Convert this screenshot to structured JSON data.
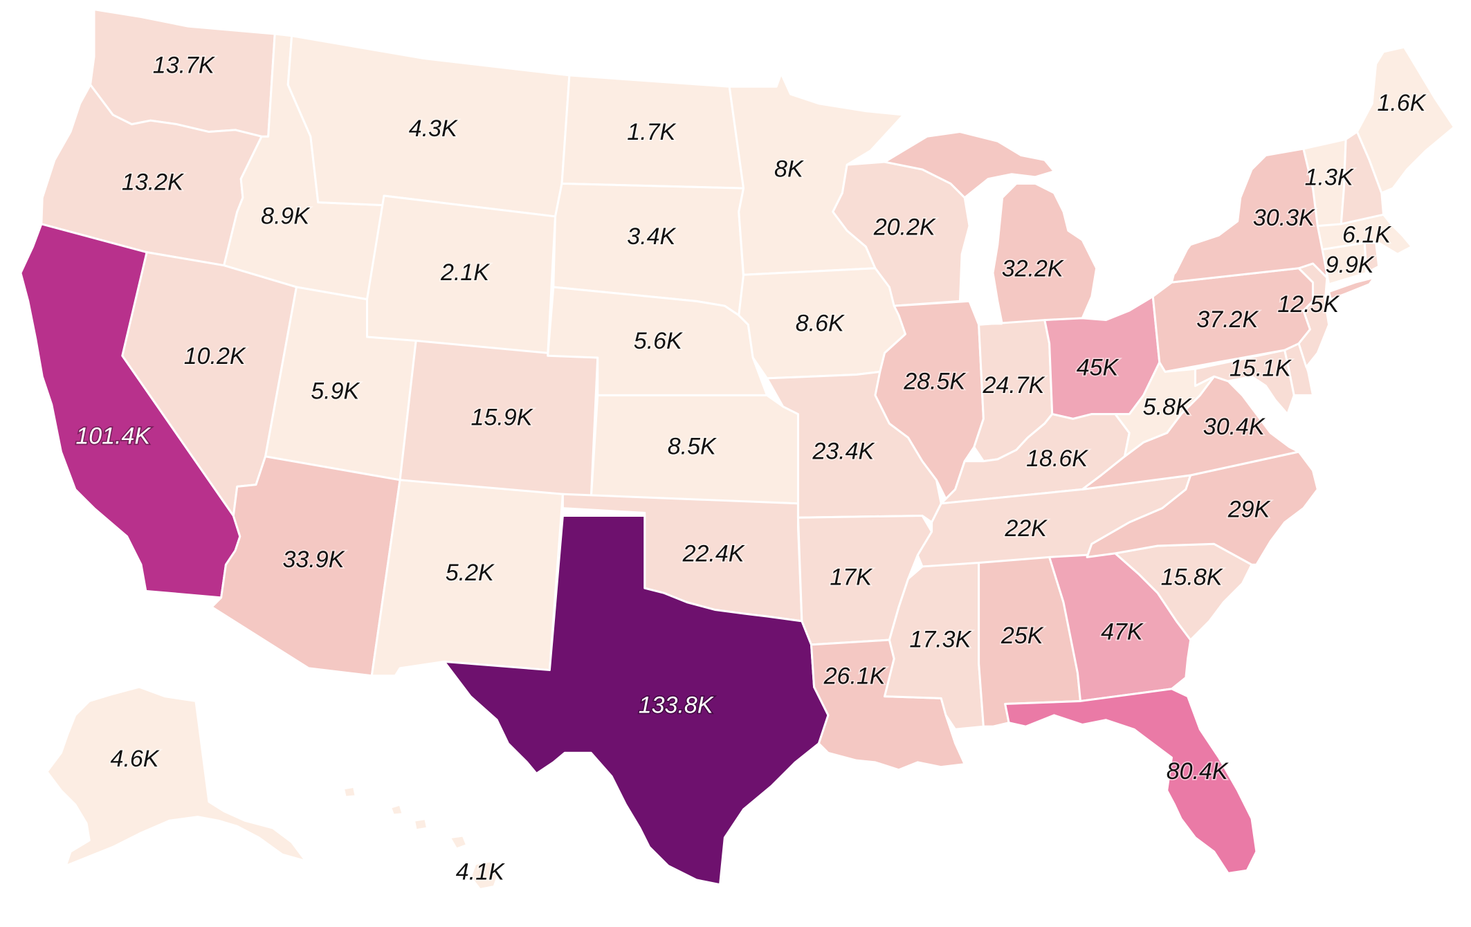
{
  "map": {
    "palette": {
      "t1": "#fcede3",
      "t2": "#f8ddd5",
      "t3": "#f4c8c3",
      "t4": "#f0a6b7",
      "t5": "#ea7aa6",
      "t6": "#b8318c",
      "t7": "#6e116e"
    },
    "states": [
      {
        "id": "WA",
        "label": "13.7K",
        "value": 13700
      },
      {
        "id": "OR",
        "label": "13.2K",
        "value": 13200
      },
      {
        "id": "CA",
        "label": "101.4K",
        "value": 101400
      },
      {
        "id": "ID",
        "label": "8.9K",
        "value": 8900
      },
      {
        "id": "NV",
        "label": "10.2K",
        "value": 10200
      },
      {
        "id": "MT",
        "label": "4.3K",
        "value": 4300
      },
      {
        "id": "WY",
        "label": "2.1K",
        "value": 2100
      },
      {
        "id": "UT",
        "label": "5.9K",
        "value": 5900
      },
      {
        "id": "AZ",
        "label": "33.9K",
        "value": 33900
      },
      {
        "id": "CO",
        "label": "15.9K",
        "value": 15900
      },
      {
        "id": "NM",
        "label": "5.2K",
        "value": 5200
      },
      {
        "id": "ND",
        "label": "1.7K",
        "value": 1700
      },
      {
        "id": "SD",
        "label": "3.4K",
        "value": 3400
      },
      {
        "id": "NE",
        "label": "5.6K",
        "value": 5600
      },
      {
        "id": "KS",
        "label": "8.5K",
        "value": 8500
      },
      {
        "id": "OK",
        "label": "22.4K",
        "value": 22400
      },
      {
        "id": "TX",
        "label": "133.8K",
        "value": 133800
      },
      {
        "id": "MN",
        "label": "8K",
        "value": 8000
      },
      {
        "id": "IA",
        "label": "8.6K",
        "value": 8600
      },
      {
        "id": "MO",
        "label": "23.4K",
        "value": 23400
      },
      {
        "id": "AR",
        "label": "17K",
        "value": 17000
      },
      {
        "id": "LA",
        "label": "26.1K",
        "value": 26100
      },
      {
        "id": "WI",
        "label": "20.2K",
        "value": 20200
      },
      {
        "id": "IL",
        "label": "28.5K",
        "value": 28500
      },
      {
        "id": "MI",
        "label": "32.2K",
        "value": 32200
      },
      {
        "id": "IN",
        "label": "24.7K",
        "value": 24700
      },
      {
        "id": "OH",
        "label": "45K",
        "value": 45000
      },
      {
        "id": "KY",
        "label": "18.6K",
        "value": 18600
      },
      {
        "id": "TN",
        "label": "22K",
        "value": 22000
      },
      {
        "id": "MS",
        "label": "17.3K",
        "value": 17300
      },
      {
        "id": "AL",
        "label": "25K",
        "value": 25000
      },
      {
        "id": "GA",
        "label": "47K",
        "value": 47000
      },
      {
        "id": "FL",
        "label": "80.4K",
        "value": 80400
      },
      {
        "id": "SC",
        "label": "15.8K",
        "value": 15800
      },
      {
        "id": "NC",
        "label": "29K",
        "value": 29000
      },
      {
        "id": "VA",
        "label": "30.4K",
        "value": 30400
      },
      {
        "id": "WV",
        "label": "5.8K",
        "value": 5800
      },
      {
        "id": "MD",
        "label": "15.1K",
        "value": 15100
      },
      {
        "id": "PA",
        "label": "37.2K",
        "value": 37200
      },
      {
        "id": "NY",
        "label": "30.3K",
        "value": 30300
      },
      {
        "id": "NJ",
        "label": "12.5K",
        "value": 12500
      },
      {
        "id": "CT",
        "label": "9.9K",
        "value": 9900
      },
      {
        "id": "MA",
        "label": "6.1K",
        "value": 6100
      },
      {
        "id": "VT",
        "label": "1.3K",
        "value": 1300
      },
      {
        "id": "ME",
        "label": "1.6K",
        "value": 1600
      },
      {
        "id": "AK",
        "label": "4.6K",
        "value": 4600
      },
      {
        "id": "HI",
        "label": "4.1K",
        "value": 4100
      }
    ]
  }
}
